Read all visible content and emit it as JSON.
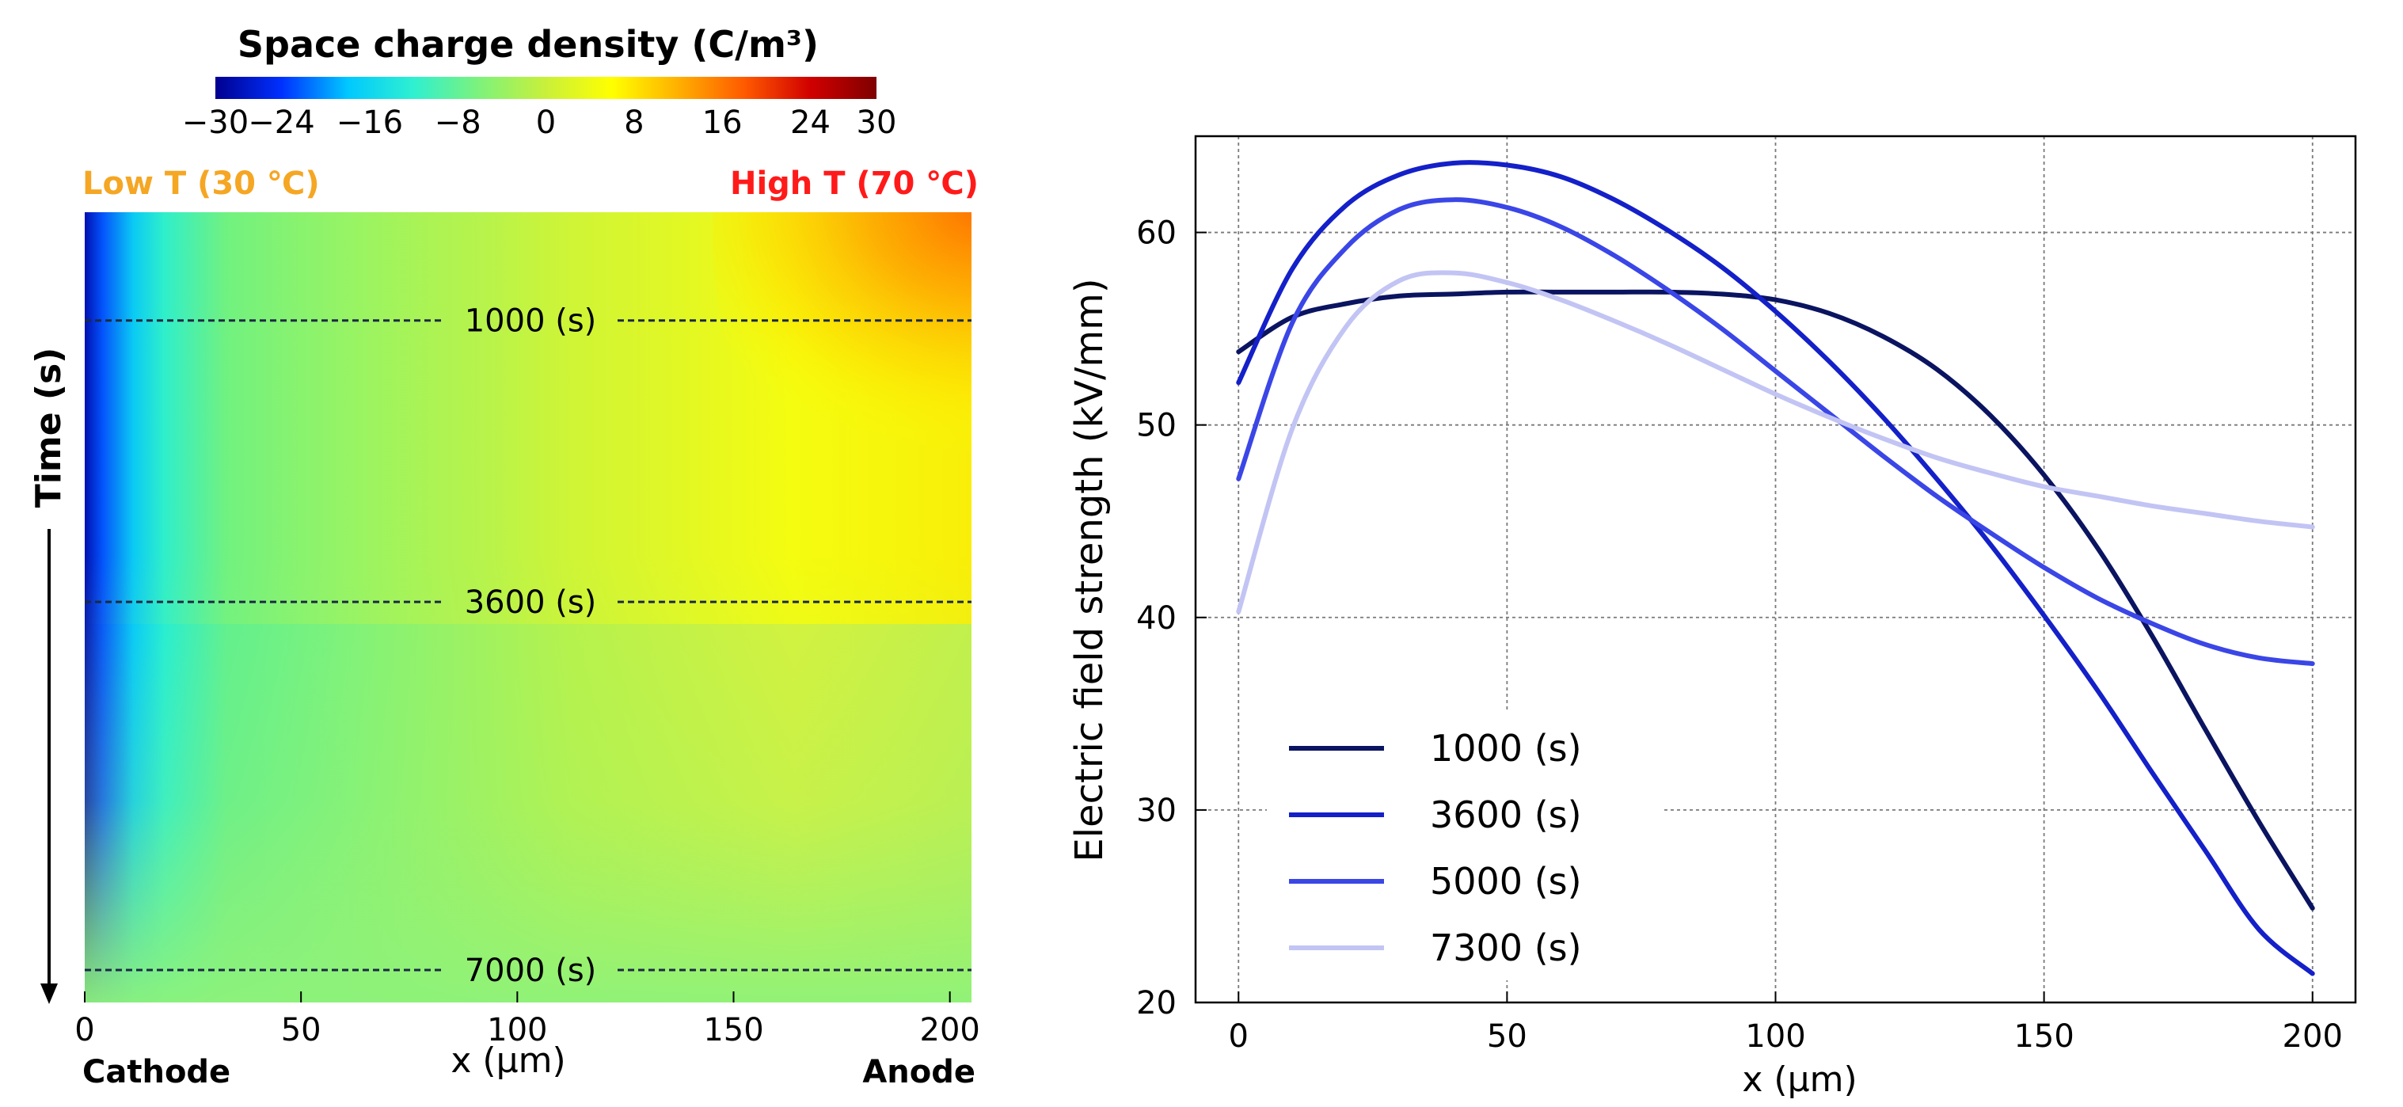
{
  "colors": {
    "low_t": "#f5a623",
    "high_t": "#ff1a1a",
    "grid": "#7a7a7a",
    "guide": "#1b2a44",
    "colormap": [
      "#00008f",
      "#0030ff",
      "#00c8ff",
      "#2ff0d0",
      "#7ef27a",
      "#c9f03a",
      "#ffff00",
      "#ffb000",
      "#ff5a00",
      "#d10000",
      "#7f0000"
    ]
  },
  "chart_data": [
    {
      "type": "heatmap",
      "title": "Space charge density (C/m³)",
      "colorbar_ticks": [
        "−30",
        "−24",
        "−16",
        "−8",
        "0",
        "8",
        "16",
        "24",
        "30"
      ],
      "colorbar_values": [
        -30,
        -24,
        -16,
        -8,
        0,
        8,
        16,
        24,
        30
      ],
      "colorbar_range": [
        -30,
        30
      ],
      "left_label": "Low T (30 ℃)",
      "right_label": "High T (70 ℃)",
      "ylabel": "Time (s)",
      "xlabel": "x (μm)",
      "xlim": [
        0,
        205
      ],
      "x_ticks": [
        "0",
        "50",
        "100",
        "150",
        "200"
      ],
      "x_tick_values": [
        0,
        50,
        100,
        150,
        200
      ],
      "x_left_caption": "Cathode",
      "x_right_caption": "Anode",
      "time_range": [
        0,
        7300
      ],
      "time_markers": [
        {
          "label": "1000 (s)",
          "time": 1000
        },
        {
          "label": "3600 (s)",
          "time": 3600
        },
        {
          "label": "7000 (s)",
          "time": 7000
        }
      ]
    },
    {
      "type": "line",
      "xlabel": "x (μm)",
      "ylabel": "Electric field strength (kV/mm)",
      "xlim": [
        -8,
        208
      ],
      "ylim": [
        20,
        65
      ],
      "x_ticks": [
        "0",
        "50",
        "100",
        "150",
        "200"
      ],
      "x_tick_values": [
        0,
        50,
        100,
        150,
        200
      ],
      "y_ticks": [
        "20",
        "30",
        "40",
        "50",
        "60"
      ],
      "y_tick_values": [
        20,
        30,
        40,
        50,
        60
      ],
      "grid": true,
      "legend_position": "bottom-left",
      "x": [
        0,
        10,
        20,
        30,
        40,
        50,
        60,
        70,
        80,
        90,
        100,
        110,
        120,
        130,
        140,
        150,
        160,
        170,
        180,
        190,
        200
      ],
      "series": [
        {
          "name": "1000 (s)",
          "color": "#0b1460",
          "values": [
            53.8,
            55.6,
            56.3,
            56.7,
            56.8,
            56.9,
            56.9,
            56.9,
            56.9,
            56.8,
            56.5,
            55.8,
            54.6,
            52.9,
            50.5,
            47.4,
            43.6,
            39.1,
            34.2,
            29.4,
            24.9
          ]
        },
        {
          "name": "3600 (s)",
          "color": "#1420c8",
          "values": [
            52.2,
            58.1,
            61.4,
            63.0,
            63.6,
            63.5,
            62.9,
            61.7,
            60.1,
            58.2,
            55.9,
            53.3,
            50.4,
            47.2,
            43.8,
            40.1,
            36.2,
            32.0,
            27.9,
            23.8,
            21.5
          ]
        },
        {
          "name": "5000 (s)",
          "color": "#3a46e6",
          "values": [
            47.2,
            55.3,
            59.2,
            61.2,
            61.7,
            61.3,
            60.3,
            58.8,
            57.0,
            55.0,
            52.8,
            50.6,
            48.4,
            46.3,
            44.4,
            42.6,
            41.0,
            39.7,
            38.6,
            37.9,
            37.6
          ]
        },
        {
          "name": "7300 (s)",
          "color": "#c2c4f4",
          "values": [
            40.3,
            49.8,
            55.1,
            57.5,
            57.9,
            57.4,
            56.5,
            55.4,
            54.2,
            52.9,
            51.6,
            50.4,
            49.3,
            48.3,
            47.5,
            46.8,
            46.3,
            45.8,
            45.4,
            45.0,
            44.7
          ]
        }
      ]
    }
  ]
}
